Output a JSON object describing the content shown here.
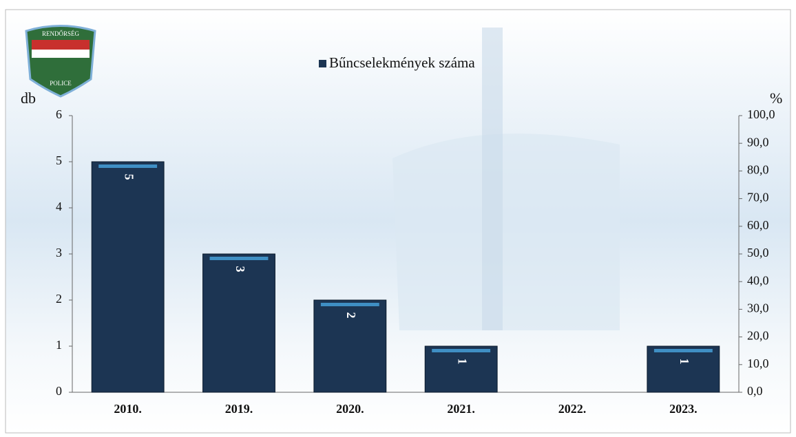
{
  "chart_data": {
    "type": "bar",
    "logo": {
      "top": "RENDŐRSÉG",
      "bottom": "POLICE"
    },
    "legend": "Bűncselekmények száma",
    "y_label": "db",
    "y2_label": "%",
    "categories": [
      "2010.",
      "2019.",
      "2020.",
      "2021.",
      "2022.",
      "2023."
    ],
    "values": [
      5,
      3,
      2,
      1,
      null,
      1
    ],
    "color": "#1c3553",
    "ylim": [
      0,
      6
    ],
    "yticks": [
      0,
      1,
      2,
      3,
      4,
      5,
      6
    ],
    "y2lim": [
      0,
      100
    ],
    "y2ticks": [
      {
        "value": 0,
        "label": "0,0"
      },
      {
        "value": 10,
        "label": "10,0"
      },
      {
        "value": 20,
        "label": "20,0"
      },
      {
        "value": 30,
        "label": "30,0"
      },
      {
        "value": 40,
        "label": "40,0"
      },
      {
        "value": 50,
        "label": "50,0"
      },
      {
        "value": 60,
        "label": "60,0"
      },
      {
        "value": 70,
        "label": "70,0"
      },
      {
        "value": 80,
        "label": "80,0"
      },
      {
        "value": 90,
        "label": "90,0"
      },
      {
        "value": 100,
        "label": "100,0"
      }
    ]
  }
}
